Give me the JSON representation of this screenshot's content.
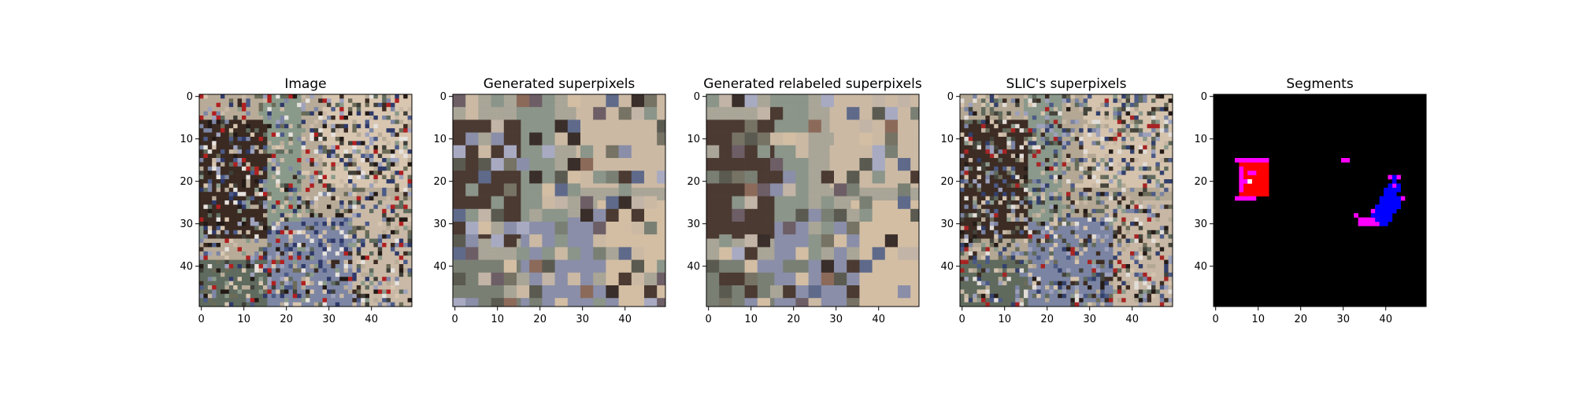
{
  "chart_data": [
    {
      "type": "heatmap",
      "title": "Image",
      "xticks": [
        0,
        10,
        20,
        30,
        40
      ],
      "yticks": [
        0,
        10,
        20,
        30,
        40
      ],
      "xlim": [
        0,
        50
      ],
      "ylim": [
        50,
        0
      ],
      "palette": [
        "#b8ab98",
        "#d8c6b0",
        "#8a9a8a",
        "#3a2a22",
        "#231a16",
        "#5f6b5e",
        "#7d86a4",
        "#9ea2bd",
        "#c9b9a6",
        "#6b6b58",
        "#4b5a88",
        "#2f3a6a",
        "#e6e2de",
        "#b02020",
        "#40403a"
      ],
      "seed": 11,
      "blocks": 1
    },
    {
      "type": "heatmap",
      "title": "Generated superpixels",
      "xticks": [
        0,
        10,
        20,
        30,
        40
      ],
      "yticks": [
        0,
        10,
        20,
        30,
        40
      ],
      "xlim": [
        0,
        50
      ],
      "ylim": [
        50,
        0
      ],
      "palette": [
        "#a9a597",
        "#cbb9a4",
        "#8b9589",
        "#4b3a32",
        "#3a2e2a",
        "#7a7f74",
        "#8a8ea8",
        "#a8aac2",
        "#d3bea4",
        "#767264",
        "#5f6a8a",
        "#6d5e66",
        "#c2b4a6",
        "#8c6a5a",
        "#5a5a50"
      ],
      "seed": 23,
      "blocks": 3
    },
    {
      "type": "heatmap",
      "title": "Generated relabeled superpixels",
      "xticks": [
        0,
        10,
        20,
        30,
        40
      ],
      "yticks": [
        0,
        10,
        20,
        30,
        40
      ],
      "xlim": [
        0,
        50
      ],
      "ylim": [
        50,
        0
      ],
      "palette": [
        "#a9a597",
        "#cbb9a4",
        "#8b9589",
        "#4b3a32",
        "#3a2e2a",
        "#7a7f74",
        "#8a8ea8",
        "#a8aac2",
        "#d3bea4",
        "#767264",
        "#5f6a8a",
        "#6d5e66",
        "#c2b4a6",
        "#8c6a5a",
        "#5a5a50"
      ],
      "seed": 37,
      "blocks": 3
    },
    {
      "type": "heatmap",
      "title": "SLIC's superpixels",
      "xticks": [
        0,
        10,
        20,
        30,
        40
      ],
      "yticks": [
        0,
        10,
        20,
        30,
        40
      ],
      "xlim": [
        0,
        50
      ],
      "ylim": [
        50,
        0
      ],
      "palette": [
        "#b4a894",
        "#d5c3ad",
        "#8a998b",
        "#3c2c24",
        "#251c18",
        "#5f6a5d",
        "#7b84a2",
        "#9ca0bb",
        "#c7b7a4",
        "#6c6c5a",
        "#4c5a86",
        "#33406c",
        "#e2ddd8",
        "#a82424",
        "#44443c"
      ],
      "seed": 51,
      "blocks": 1
    },
    {
      "type": "heatmap",
      "title": "Segments",
      "xticks": [
        0,
        10,
        20,
        30,
        40
      ],
      "yticks": [
        0,
        10,
        20,
        30,
        40
      ],
      "xlim": [
        0,
        50
      ],
      "ylim": [
        50,
        0
      ],
      "background": "#000000",
      "cells": [
        {
          "color": "#ff0000",
          "rects": [
            [
              6,
              15,
              7,
              9
            ]
          ]
        },
        {
          "color": "#ff00ff",
          "rects": [
            [
              5,
              15,
              8,
              1
            ],
            [
              5,
              24,
              5,
              1
            ],
            [
              6,
              17,
              1,
              6
            ],
            [
              8,
              18,
              2,
              1
            ],
            [
              7,
              20,
              1,
              1
            ],
            [
              30,
              15,
              2,
              1
            ],
            [
              34,
              29,
              5,
              2
            ],
            [
              33,
              28,
              1,
              1
            ],
            [
              41,
              19,
              1,
              1
            ],
            [
              43,
              19,
              1,
              1
            ],
            [
              42,
              21,
              1,
              1
            ],
            [
              44,
              24,
              1,
              1
            ],
            [
              37,
              27,
              1,
              1
            ],
            [
              38,
              26,
              1,
              1
            ]
          ]
        },
        {
          "color": "#ffffff",
          "rects": [
            [
              8,
              20,
              1,
              1
            ]
          ]
        },
        {
          "color": "#0000ff",
          "rects": [
            [
              42,
              19,
              1,
              2
            ],
            [
              41,
              21,
              1,
              1
            ],
            [
              43,
              21,
              1,
              2
            ],
            [
              40,
              22,
              3,
              2
            ],
            [
              39,
              24,
              5,
              2
            ],
            [
              38,
              26,
              6,
              1
            ],
            [
              38,
              27,
              5,
              1
            ],
            [
              37,
              28,
              5,
              1
            ],
            [
              38,
              29,
              4,
              1
            ],
            [
              39,
              30,
              2,
              1
            ]
          ]
        }
      ]
    }
  ]
}
